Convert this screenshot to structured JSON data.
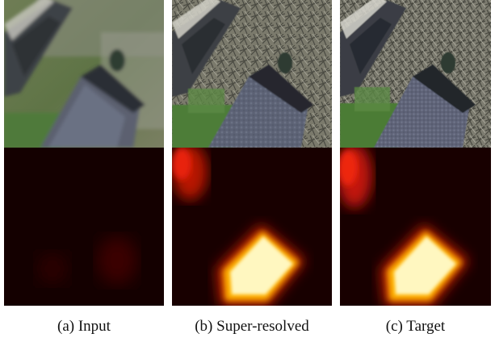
{
  "figure": {
    "columns": [
      {
        "id": "input",
        "caption": "(a) Input"
      },
      {
        "id": "super-resolved",
        "caption": "(b) Super-resolved"
      },
      {
        "id": "target",
        "caption": "(c) Target"
      }
    ],
    "rows": [
      {
        "id": "aerial-photo",
        "content": "aerial image of a house roof with trees and grass"
      },
      {
        "id": "heatmap",
        "content": "detection heatmap, black-red-yellow-white colormap"
      }
    ]
  }
}
